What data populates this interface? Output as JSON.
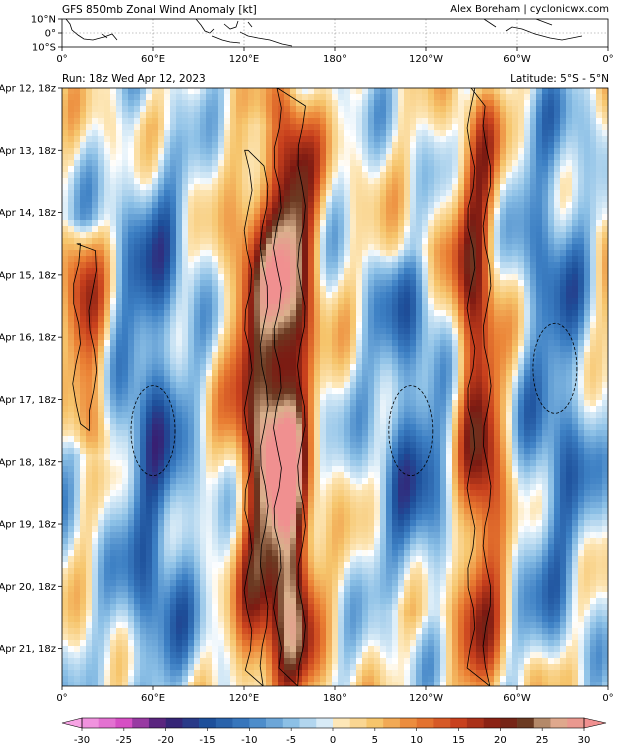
{
  "header": {
    "title": "GFS 850mb Zonal Wind Anomaly [kt]",
    "credit": "Alex Boreham | cyclonicwx.com"
  },
  "map_panel": {
    "lat_ticks": [
      "10°N",
      "0°",
      "10°S"
    ],
    "lon_ticks": [
      "0°",
      "60°E",
      "120°E",
      "180°",
      "120°W",
      "60°W",
      "0°"
    ]
  },
  "main_panel": {
    "run_label": "Run: 18z Wed Apr 12, 2023",
    "latitude_label": "Latitude: 5°S - 5°N"
  },
  "colorbar": {
    "ticks": [
      "-30",
      "-25",
      "-20",
      "-15",
      "-10",
      "-5",
      "0",
      "5",
      "10",
      "15",
      "20",
      "25",
      "30"
    ]
  },
  "chart_data": {
    "type": "heatmap",
    "title": "GFS 850mb Zonal Wind Anomaly [kt]",
    "xlabel": "",
    "ylabel": "",
    "x_ticks": [
      "0°",
      "60°E",
      "120°E",
      "180°",
      "120°W",
      "60°W",
      "0°"
    ],
    "y_ticks": [
      "Apr 12, 18z",
      "Apr 13, 18z",
      "Apr 14, 18z",
      "Apr 15, 18z",
      "Apr 16, 18z",
      "Apr 17, 18z",
      "Apr 18, 18z",
      "Apr 19, 18z",
      "Apr 20, 18z",
      "Apr 21, 18z"
    ],
    "value_range": [
      -30,
      30
    ],
    "units": "kt",
    "colors": {
      "strong_negative": "#e06fd6",
      "negative": "#2e6db3",
      "weak_negative": "#a9d0ee",
      "neutral": "#ffffff",
      "weak_positive": "#f6c56c",
      "positive": "#e2642a",
      "strong_positive": "#8f1b12",
      "extreme_positive": "#f0a4a4"
    },
    "features": [
      {
        "lon_deg": 150,
        "start_day": 0,
        "end_day": 10,
        "peak_anomaly": 27,
        "sign": "positive"
      },
      {
        "lon_deg": 128,
        "start_day": 1,
        "end_day": 10,
        "peak_anomaly": 17,
        "sign": "positive"
      },
      {
        "lon_deg": 275,
        "start_day": 0,
        "end_day": 10,
        "peak_anomaly": 19,
        "sign": "positive"
      },
      {
        "lon_deg": 15,
        "start_day": 2.5,
        "end_day": 5.5,
        "peak_anomaly": 14,
        "sign": "positive"
      },
      {
        "lon_deg": 60,
        "start_day": 1,
        "end_day": 10,
        "peak_anomaly": -12,
        "sign": "negative"
      },
      {
        "lon_deg": 230,
        "start_day": 3,
        "end_day": 8,
        "peak_anomaly": -11,
        "sign": "negative"
      },
      {
        "lon_deg": 325,
        "start_day": 0,
        "end_day": 9,
        "peak_anomaly": -10,
        "sign": "negative"
      }
    ]
  }
}
